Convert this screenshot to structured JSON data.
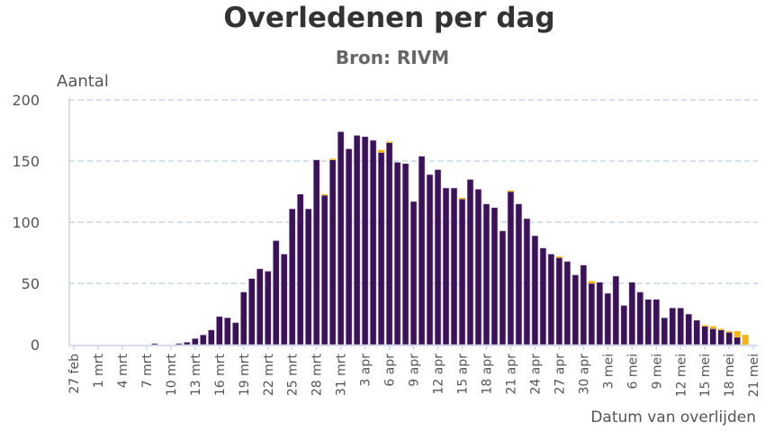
{
  "chart_data": {
    "type": "bar",
    "stacked": true,
    "title": "Overledenen per dag",
    "subtitle": "Bron: RIVM",
    "ylabel": "Aantal",
    "xlabel": "Datum van overlijden",
    "ylim": [
      0,
      200
    ],
    "yticks": [
      0,
      50,
      100,
      150,
      200
    ],
    "grid": true,
    "colors": {
      "main": "#3b1159",
      "extra": "#f9b410",
      "grid": "#b9cde3",
      "axis": "#c5d3e6"
    },
    "categories": [
      "27 feb",
      "28 feb",
      "29 feb",
      "1 mrt",
      "2 mrt",
      "3 mrt",
      "4 mrt",
      "5 mrt",
      "6 mrt",
      "7 mrt",
      "8 mrt",
      "9 mrt",
      "10 mrt",
      "11 mrt",
      "12 mrt",
      "13 mrt",
      "14 mrt",
      "15 mrt",
      "16 mrt",
      "17 mrt",
      "18 mrt",
      "19 mrt",
      "20 mrt",
      "21 mrt",
      "22 mrt",
      "23 mrt",
      "24 mrt",
      "25 mrt",
      "26 mrt",
      "27 mrt",
      "28 mrt",
      "29 mrt",
      "30 mrt",
      "31 mrt",
      "1 apr",
      "2 apr",
      "3 apr",
      "4 apr",
      "5 apr",
      "6 apr",
      "7 apr",
      "8 apr",
      "9 apr",
      "10 apr",
      "11 apr",
      "12 apr",
      "13 apr",
      "14 apr",
      "15 apr",
      "16 apr",
      "17 apr",
      "18 apr",
      "19 apr",
      "20 apr",
      "21 apr",
      "22 apr",
      "23 apr",
      "24 apr",
      "25 apr",
      "26 apr",
      "27 apr",
      "28 apr",
      "29 apr",
      "30 apr",
      "1 mei",
      "2 mei",
      "3 mei",
      "4 mei",
      "5 mei",
      "6 mei",
      "7 mei",
      "8 mei",
      "9 mei",
      "10 mei",
      "11 mei",
      "12 mei",
      "13 mei",
      "14 mei",
      "15 mei",
      "16 mei",
      "17 mei",
      "18 mei",
      "19 mei",
      "20 mei",
      "21 mei"
    ],
    "tick_labels": [
      "27 feb",
      "1 mrt",
      "4 mrt",
      "7 mrt",
      "10 mrt",
      "13 mrt",
      "16 mrt",
      "19 mrt",
      "22 mrt",
      "25 mrt",
      "28 mrt",
      "31 mrt",
      "3 apr",
      "6 apr",
      "9 apr",
      "12 apr",
      "15 apr",
      "18 apr",
      "21 apr",
      "24 apr",
      "27 apr",
      "30 apr",
      "3 mei",
      "6 mei",
      "9 mei",
      "12 mei",
      "15 mei",
      "18 mei",
      "21 mei"
    ],
    "series": [
      {
        "values": [
          0,
          0,
          0,
          0,
          0,
          0,
          0,
          0,
          0,
          0,
          1,
          0,
          0,
          1,
          2,
          5,
          8,
          12,
          23,
          22,
          18,
          43,
          54,
          62,
          60,
          85,
          74,
          111,
          123,
          111,
          151,
          122,
          151,
          174,
          160,
          171,
          170,
          167,
          157,
          165,
          149,
          148,
          117,
          154,
          139,
          143,
          128,
          128,
          119,
          135,
          127,
          115,
          112,
          93,
          125,
          115,
          103,
          89,
          79,
          74,
          71,
          68,
          57,
          65,
          50,
          51,
          42,
          56,
          32,
          51,
          43,
          37,
          37,
          22,
          30,
          30,
          25,
          20,
          15,
          13,
          12,
          10,
          6,
          0,
          0
        ]
      },
      {
        "values": [
          0,
          0,
          0,
          0,
          0,
          0,
          0,
          0,
          0,
          0,
          0,
          0,
          0,
          0,
          0,
          0,
          0,
          0,
          0,
          0,
          0,
          0,
          0,
          0,
          0,
          0,
          0,
          0,
          0,
          0,
          0,
          1,
          1,
          0,
          0,
          0,
          0,
          0,
          2,
          1,
          0,
          0,
          0,
          0,
          0,
          0,
          0,
          0,
          1,
          0,
          0,
          0,
          0,
          0,
          1,
          0,
          0,
          0,
          0,
          0,
          1,
          0,
          0,
          0,
          2,
          0,
          0,
          0,
          0,
          0,
          0,
          0,
          0,
          0,
          0,
          0,
          0,
          0,
          1,
          2,
          1,
          1,
          5,
          8,
          0
        ]
      }
    ]
  }
}
